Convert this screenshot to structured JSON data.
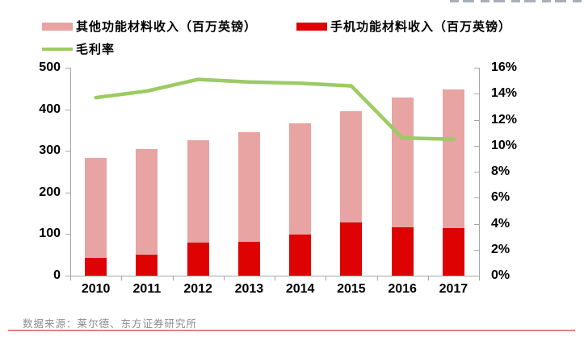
{
  "page": {
    "source_note": "数据来源：莱尔德、东方证券研究所"
  },
  "legend": {
    "items": [
      {
        "label": "其他功能材料收入（百万英镑）",
        "color": "#E8A3A3",
        "marker": "box"
      },
      {
        "label": "手机功能材料收入（百万英镑）",
        "color": "#DE0202",
        "marker": "box"
      },
      {
        "label": "毛利率",
        "color": "#9CCB63",
        "marker": "line"
      }
    ]
  },
  "chart_data": {
    "type": "combo-stacked-bar-line",
    "title": "",
    "categories": [
      "2010",
      "2011",
      "2012",
      "2013",
      "2014",
      "2015",
      "2016",
      "2017"
    ],
    "series": [
      {
        "name": "手机功能材料收入（百万英镑）",
        "type": "bar",
        "stack": "revenue",
        "axis": "left",
        "color": "#DE0202",
        "values": [
          42,
          51,
          79,
          82,
          99,
          127,
          116,
          114
        ]
      },
      {
        "name": "其他功能材料收入（百万英镑）",
        "type": "bar",
        "stack": "revenue",
        "axis": "left",
        "color": "#E8A3A3",
        "values": [
          241,
          254,
          246,
          262,
          268,
          268,
          313,
          334
        ]
      },
      {
        "name": "毛利率",
        "type": "line",
        "axis": "right",
        "color": "#9CCB63",
        "values": [
          13.7,
          14.2,
          15.1,
          14.9,
          14.8,
          14.6,
          10.6,
          10.5
        ]
      }
    ],
    "stack_totals": [
      283,
      305,
      325,
      344,
      367,
      395,
      429,
      448
    ],
    "axis_left": {
      "min": 0,
      "max": 500,
      "step": 100,
      "labels": [
        "0",
        "100",
        "200",
        "300",
        "400",
        "500"
      ]
    },
    "axis_right": {
      "min": 0,
      "max": 16,
      "step": 2,
      "unit": "%",
      "labels": [
        "0%",
        "2%",
        "4%",
        "6%",
        "8%",
        "10%",
        "12%",
        "14%",
        "16%"
      ]
    },
    "grid": false,
    "legend_position": "top-left"
  }
}
